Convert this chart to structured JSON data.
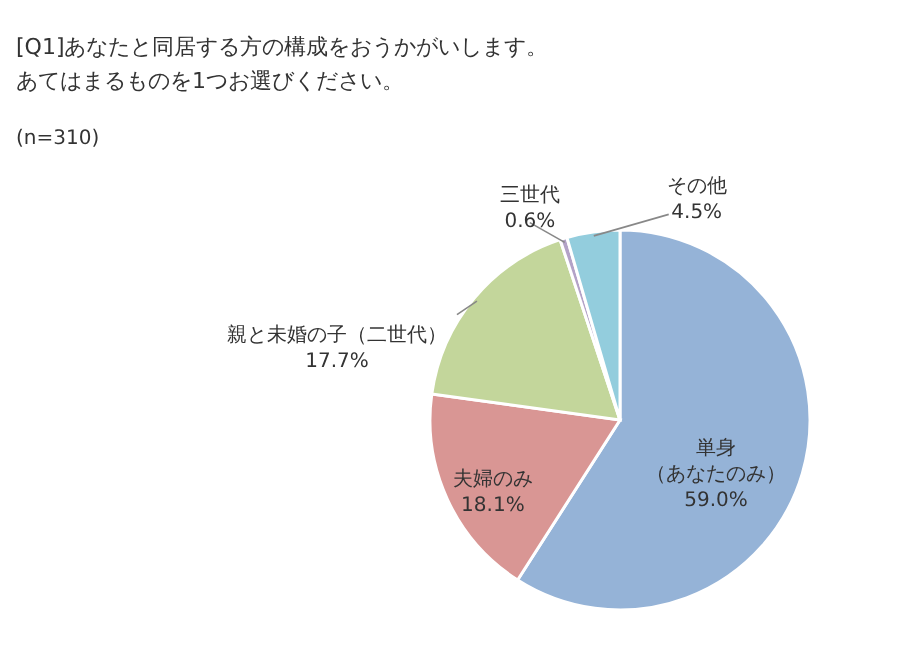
{
  "chart_data": {
    "type": "pie",
    "title": [
      "[Q1]あなたと同居する方の構成をおうかがいします。",
      "　　あてはまるものを1つお選びください。"
    ],
    "subtitle": "(n=310)",
    "categories": [
      "単身（あなたのみ）",
      "夫婦のみ",
      "親と未婚の子（二世代）",
      "三世代",
      "その他"
    ],
    "values": [
      59.0,
      18.1,
      17.7,
      0.6,
      4.5
    ],
    "value_labels": [
      "59.0%",
      "18.1%",
      "17.7%",
      "0.6%",
      "4.5%"
    ],
    "colors": [
      "#95b3d7",
      "#d99694",
      "#c3d69b",
      "#b3a2c7",
      "#93cddd"
    ]
  }
}
